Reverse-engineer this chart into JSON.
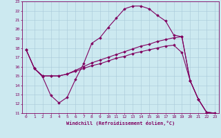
{
  "xlabel": "Windchill (Refroidissement éolien,°C)",
  "xlim": [
    -0.5,
    23.5
  ],
  "ylim": [
    11,
    23
  ],
  "xticks": [
    0,
    1,
    2,
    3,
    4,
    5,
    6,
    7,
    8,
    9,
    10,
    11,
    12,
    13,
    14,
    15,
    16,
    17,
    18,
    19,
    20,
    21,
    22,
    23
  ],
  "yticks": [
    11,
    12,
    13,
    14,
    15,
    16,
    17,
    18,
    19,
    20,
    21,
    22,
    23
  ],
  "bg_color": "#cce9f0",
  "line_color": "#800060",
  "grid_color": "#a8c8d8",
  "line1_x": [
    0,
    1,
    2,
    3,
    4,
    5,
    6,
    7,
    8,
    9,
    10,
    11,
    12,
    13,
    14,
    15,
    16,
    17,
    18,
    19,
    20,
    21,
    22,
    23
  ],
  "line1_y": [
    17.8,
    15.8,
    14.9,
    12.9,
    12.1,
    12.7,
    14.6,
    16.3,
    18.5,
    19.1,
    20.2,
    21.2,
    22.2,
    22.5,
    22.5,
    22.2,
    21.5,
    20.9,
    19.4,
    19.2,
    14.5,
    12.5,
    11.1,
    11.0
  ],
  "line2_x": [
    0,
    1,
    2,
    3,
    4,
    5,
    6,
    7,
    8,
    9,
    10,
    11,
    12,
    13,
    14,
    15,
    16,
    17,
    18,
    19,
    20,
    21,
    22,
    23
  ],
  "line2_y": [
    17.8,
    15.8,
    15.0,
    15.0,
    15.0,
    15.2,
    15.5,
    15.8,
    16.1,
    16.3,
    16.6,
    16.9,
    17.1,
    17.4,
    17.6,
    17.8,
    18.0,
    18.2,
    18.3,
    17.5,
    14.5,
    12.5,
    11.1,
    11.0
  ],
  "line3_x": [
    0,
    1,
    2,
    3,
    4,
    5,
    6,
    7,
    8,
    9,
    10,
    11,
    12,
    13,
    14,
    15,
    16,
    17,
    18,
    19,
    20,
    21,
    22,
    23
  ],
  "line3_y": [
    17.8,
    15.8,
    15.0,
    15.0,
    15.0,
    15.2,
    15.6,
    16.0,
    16.4,
    16.7,
    17.0,
    17.3,
    17.6,
    17.9,
    18.2,
    18.4,
    18.7,
    18.9,
    19.1,
    19.2,
    14.5,
    12.5,
    11.1,
    11.0
  ]
}
